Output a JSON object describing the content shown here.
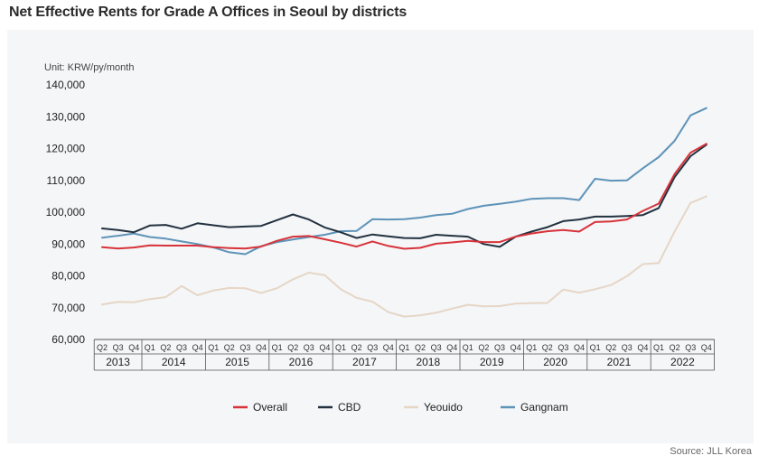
{
  "title": "Net Effective Rents for Grade A Offices in Seoul by districts",
  "source": "Source: JLL Korea",
  "unit_label": "Unit: KRW/py/month",
  "colors": {
    "Overall": "#d8333a",
    "CBD": "#22313f",
    "Yeouido": "#e6d6c6",
    "Gangnam": "#5e93b8",
    "axis": "#555555"
  },
  "chart_data": {
    "type": "line",
    "ylim": [
      60000,
      140000
    ],
    "y_ticks": [
      "60,000",
      "70,000",
      "80,000",
      "90,000",
      "100,000",
      "110,000",
      "120,000",
      "130,000",
      "140,000"
    ],
    "x": [
      "2013 Q2",
      "2013 Q3",
      "2013 Q4",
      "2014 Q1",
      "2014 Q2",
      "2014 Q3",
      "2014 Q4",
      "2015 Q1",
      "2015 Q2",
      "2015 Q3",
      "2015 Q4",
      "2016 Q1",
      "2016 Q2",
      "2016 Q3",
      "2016 Q4",
      "2017 Q1",
      "2017 Q2",
      "2017 Q3",
      "2017 Q4",
      "2018 Q1",
      "2018 Q2",
      "2018 Q3",
      "2018 Q4",
      "2019 Q1",
      "2019 Q2",
      "2019 Q3",
      "2019 Q4",
      "2020 Q1",
      "2020 Q2",
      "2020 Q3",
      "2020 Q4",
      "2021 Q1",
      "2021 Q2",
      "2021 Q3",
      "2021 Q4",
      "2022 Q1",
      "2022 Q2",
      "2022 Q3",
      "2022 Q4"
    ],
    "quarter_labels": [
      "Q2",
      "Q3",
      "Q4",
      "Q1",
      "Q2",
      "Q3",
      "Q4",
      "Q1",
      "Q2",
      "Q3",
      "Q4",
      "Q1",
      "Q2",
      "Q3",
      "Q4",
      "Q1",
      "Q2",
      "Q3",
      "Q4",
      "Q1",
      "Q2",
      "Q3",
      "Q4",
      "Q1",
      "Q2",
      "Q3",
      "Q4",
      "Q1",
      "Q2",
      "Q3",
      "Q4",
      "Q1",
      "Q2",
      "Q3",
      "Q4",
      "Q1",
      "Q2",
      "Q3",
      "Q4"
    ],
    "years": [
      {
        "label": "2013",
        "count": 3
      },
      {
        "label": "2014",
        "count": 4
      },
      {
        "label": "2015",
        "count": 4
      },
      {
        "label": "2016",
        "count": 4
      },
      {
        "label": "2017",
        "count": 4
      },
      {
        "label": "2018",
        "count": 4
      },
      {
        "label": "2019",
        "count": 4
      },
      {
        "label": "2020",
        "count": 4
      },
      {
        "label": "2021",
        "count": 4
      },
      {
        "label": "2022",
        "count": 4
      }
    ],
    "series": [
      {
        "name": "Overall",
        "values": [
          89000,
          88600,
          88900,
          89600,
          89500,
          89500,
          89500,
          89000,
          88700,
          88600,
          89200,
          91000,
          92300,
          92500,
          91500,
          90400,
          89200,
          90800,
          89400,
          88500,
          88800,
          90100,
          90500,
          91000,
          90600,
          90600,
          92300,
          93300,
          94000,
          94400,
          93900,
          96900,
          97100,
          97700,
          100400,
          102700,
          112000,
          118700,
          121500
        ]
      },
      {
        "name": "CBD",
        "values": [
          94900,
          94400,
          93700,
          95800,
          96000,
          94800,
          96500,
          95900,
          95300,
          95500,
          95700,
          97500,
          99300,
          97700,
          95200,
          93700,
          91900,
          93000,
          92400,
          91900,
          91800,
          92900,
          92600,
          92300,
          90000,
          89100,
          92300,
          93900,
          95300,
          97200,
          97700,
          98600,
          98600,
          98800,
          99100,
          101300,
          111000,
          117600,
          121200
        ]
      },
      {
        "name": "Yeouido",
        "values": [
          71000,
          71800,
          71700,
          72700,
          73300,
          76800,
          73900,
          75400,
          76200,
          76100,
          74600,
          76100,
          78900,
          81000,
          80200,
          75800,
          73100,
          71900,
          68600,
          67200,
          67600,
          68400,
          69700,
          70900,
          70400,
          70500,
          71300,
          71400,
          71500,
          75700,
          74700,
          75800,
          77100,
          79900,
          83700,
          84000,
          93900,
          102900,
          105000
        ]
      },
      {
        "name": "Gangnam",
        "values": [
          92000,
          92600,
          93300,
          92200,
          91700,
          90800,
          90000,
          88900,
          87400,
          86800,
          89300,
          90600,
          91400,
          92200,
          92900,
          94000,
          94100,
          97800,
          97700,
          97800,
          98300,
          99100,
          99500,
          101000,
          102000,
          102600,
          103300,
          104200,
          104400,
          104400,
          103800,
          110500,
          109900,
          110000,
          113800,
          117300,
          122400,
          130400,
          132700
        ]
      }
    ],
    "legend": [
      "Overall",
      "CBD",
      "Yeouido",
      "Gangnam"
    ],
    "legend_position": "bottom",
    "grid": false
  }
}
